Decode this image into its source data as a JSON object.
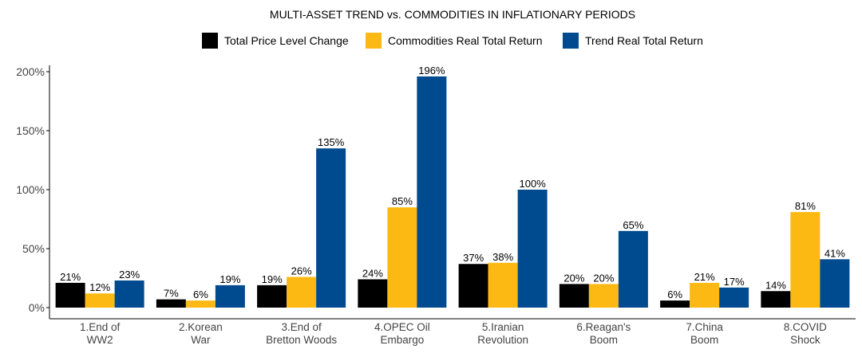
{
  "chart_data": {
    "type": "bar",
    "title": "MULTI-ASSET TREND vs. COMMODITIES IN INFLATIONARY PERIODS",
    "xlabel": "",
    "ylabel": "",
    "categories": [
      [
        "1.End of",
        "WW2"
      ],
      [
        "2.Korean",
        "War"
      ],
      [
        "3.End of",
        "Bretton Woods"
      ],
      [
        "4.OPEC Oil",
        "Embargo"
      ],
      [
        "5.Iranian",
        "Revolution"
      ],
      [
        "6.Reagan's",
        "Boom"
      ],
      [
        "7.China",
        "Boom"
      ],
      [
        "8.COVID",
        "Shock"
      ]
    ],
    "series": [
      {
        "name": "Total Price Level Change",
        "color": "#000000",
        "values": [
          21,
          7,
          19,
          24,
          37,
          20,
          6,
          14
        ]
      },
      {
        "name": "Commodities Real Total Return",
        "color": "#FDB913",
        "values": [
          12,
          6,
          26,
          85,
          38,
          20,
          21,
          81
        ]
      },
      {
        "name": "Trend Real Total Return",
        "color": "#004A8F",
        "values": [
          23,
          19,
          135,
          196,
          100,
          65,
          17,
          41
        ]
      }
    ],
    "value_suffix": "%",
    "ylim": [
      0,
      200
    ],
    "yticks": [
      0,
      50,
      100,
      150,
      200
    ],
    "ytick_labels": [
      "0%",
      "50%",
      "100%",
      "150%",
      "200%"
    ],
    "grid": false,
    "legend_position": "top-center"
  }
}
